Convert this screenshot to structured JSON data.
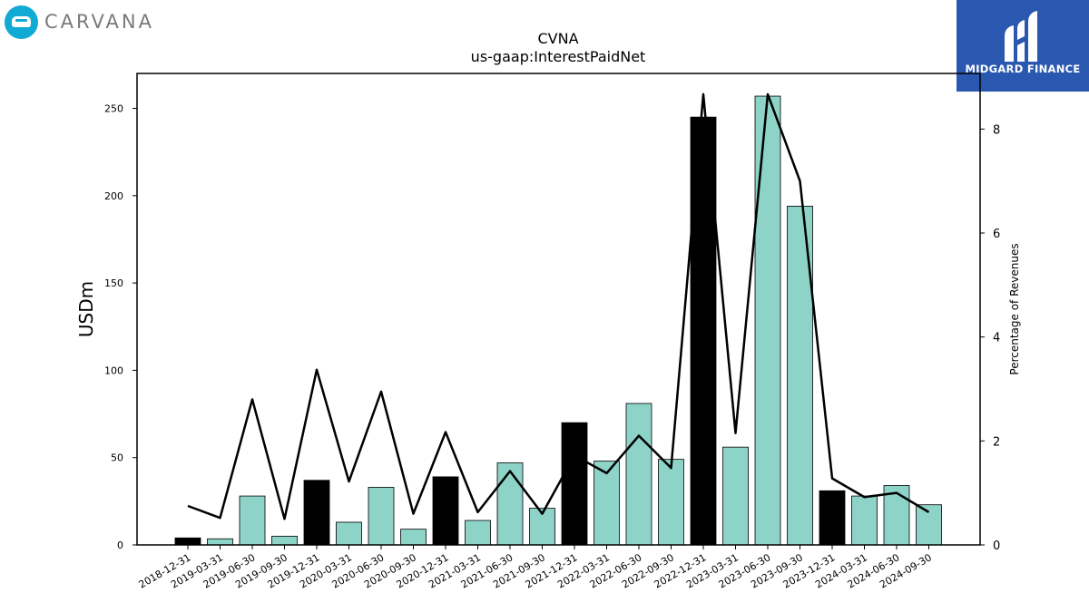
{
  "logos": {
    "left_text": "CARVANA",
    "right_text": "MIDGARD FINANCE",
    "left_color": "#10aad4",
    "right_color": "#2a58b0"
  },
  "chart_data": {
    "type": "bar",
    "title": "CVNA",
    "subtitle": "us-gaap:InterestPaidNet",
    "ylabel": "USDm",
    "y2label": "Percentage of Revenues",
    "ylim": [
      0,
      270
    ],
    "y2lim": [
      0,
      9.07
    ],
    "yticks": [
      0,
      50,
      100,
      150,
      200,
      250
    ],
    "y2ticks": [
      0,
      2,
      4,
      6,
      8
    ],
    "grid": false,
    "categories": [
      "2018-12-31",
      "2019-03-31",
      "2019-06-30",
      "2019-09-30",
      "2019-12-31",
      "2020-03-31",
      "2020-06-30",
      "2020-09-30",
      "2020-12-31",
      "2021-03-31",
      "2021-06-30",
      "2021-09-30",
      "2021-12-31",
      "2022-03-31",
      "2022-06-30",
      "2022-09-30",
      "2022-12-31",
      "2023-03-31",
      "2023-06-30",
      "2023-09-30",
      "2023-12-31",
      "2024-03-31",
      "2024-06-30",
      "2024-09-30"
    ],
    "series": [
      {
        "type": "bar",
        "values": [
          4,
          3.5,
          28,
          5,
          37,
          13,
          33,
          9,
          39,
          14,
          47,
          21,
          70,
          48,
          81,
          49,
          245,
          56,
          257,
          194,
          31,
          28,
          34,
          23
        ],
        "colors": [
          "#000000",
          "#8dd3c7",
          "#8dd3c7",
          "#8dd3c7",
          "#000000",
          "#8dd3c7",
          "#8dd3c7",
          "#8dd3c7",
          "#000000",
          "#8dd3c7",
          "#8dd3c7",
          "#8dd3c7",
          "#000000",
          "#8dd3c7",
          "#8dd3c7",
          "#8dd3c7",
          "#000000",
          "#8dd3c7",
          "#8dd3c7",
          "#8dd3c7",
          "#000000",
          "#8dd3c7",
          "#8dd3c7",
          "#8dd3c7"
        ]
      },
      {
        "type": "line",
        "axis": "right",
        "color": "#000000",
        "values": [
          0.75,
          0.52,
          2.8,
          0.5,
          3.37,
          1.22,
          2.95,
          0.6,
          2.17,
          0.63,
          1.42,
          0.6,
          1.72,
          1.38,
          2.1,
          1.48,
          8.67,
          2.15,
          8.67,
          7.0,
          1.28,
          0.92,
          1.0,
          0.63
        ]
      }
    ]
  }
}
